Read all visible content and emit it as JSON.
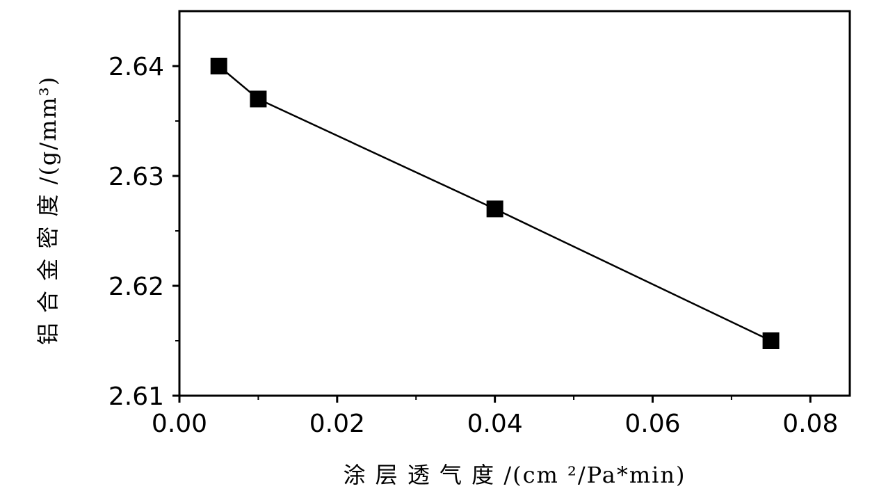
{
  "chart_data": {
    "type": "line",
    "xlabel": "涂 层 透 气 度 /(cm ²/Pa*min)",
    "ylabel": "铝 合 金 密 度 /(g/mm³)",
    "xlim": [
      0.0,
      0.085
    ],
    "ylim": [
      2.61,
      2.645
    ],
    "x_ticks": [
      "0.00",
      "0.02",
      "0.04",
      "0.06",
      "0.08"
    ],
    "y_ticks": [
      "2.61",
      "2.62",
      "2.63",
      "2.64"
    ],
    "x_tick_values": [
      0.0,
      0.02,
      0.04,
      0.06,
      0.08
    ],
    "y_tick_values": [
      2.61,
      2.62,
      2.63,
      2.64
    ],
    "x_minor_ticks": [
      0.01,
      0.03,
      0.05,
      0.07
    ],
    "y_minor_ticks": [
      2.615,
      2.625,
      2.635
    ],
    "grid": false,
    "marker": "square",
    "series": [
      {
        "x": [
          0.005,
          0.01,
          0.04,
          0.075
        ],
        "y": [
          2.64,
          2.637,
          2.627,
          2.615
        ]
      }
    ],
    "colors": {
      "line": "#000000",
      "marker": "#000000"
    }
  }
}
